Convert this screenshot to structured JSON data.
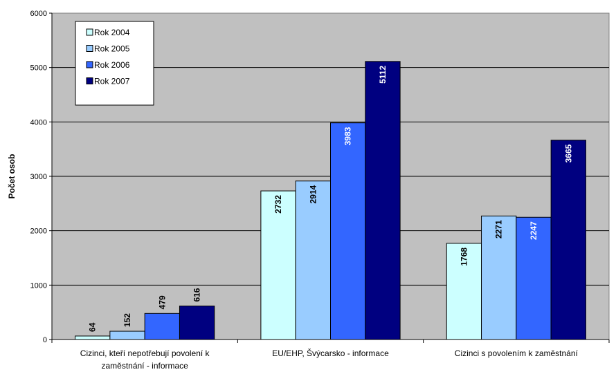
{
  "chart_data": {
    "type": "bar",
    "ylabel": "Počet osob",
    "xlabel": "",
    "ylim": [
      0,
      6000
    ],
    "yticks": [
      0,
      1000,
      2000,
      3000,
      4000,
      5000,
      6000
    ],
    "grid": true,
    "legend": "top-left",
    "categories": [
      [
        "Cizinci, kteří nepotřebují povolení k",
        "zaměstnání - informace"
      ],
      [
        "EU/EHP, Švýcarsko - informace"
      ],
      [
        "Cizinci s povolením k zaměstnání"
      ]
    ],
    "series": [
      {
        "name": "Rok 2004",
        "values": [
          64,
          2732,
          1768
        ],
        "color": "#ccffff",
        "label_color": "#000000"
      },
      {
        "name": "Rok 2005",
        "values": [
          152,
          2914,
          2271
        ],
        "color": "#99ccff",
        "label_color": "#000000"
      },
      {
        "name": "Rok 2006",
        "values": [
          479,
          3983,
          2247
        ],
        "color": "#3366ff",
        "label_color": "#ffffff"
      },
      {
        "name": "Rok 2007",
        "values": [
          616,
          5112,
          3665
        ],
        "color": "#000080",
        "label_color": "#ffffff"
      }
    ],
    "plot_background": "#c0c0c0"
  }
}
